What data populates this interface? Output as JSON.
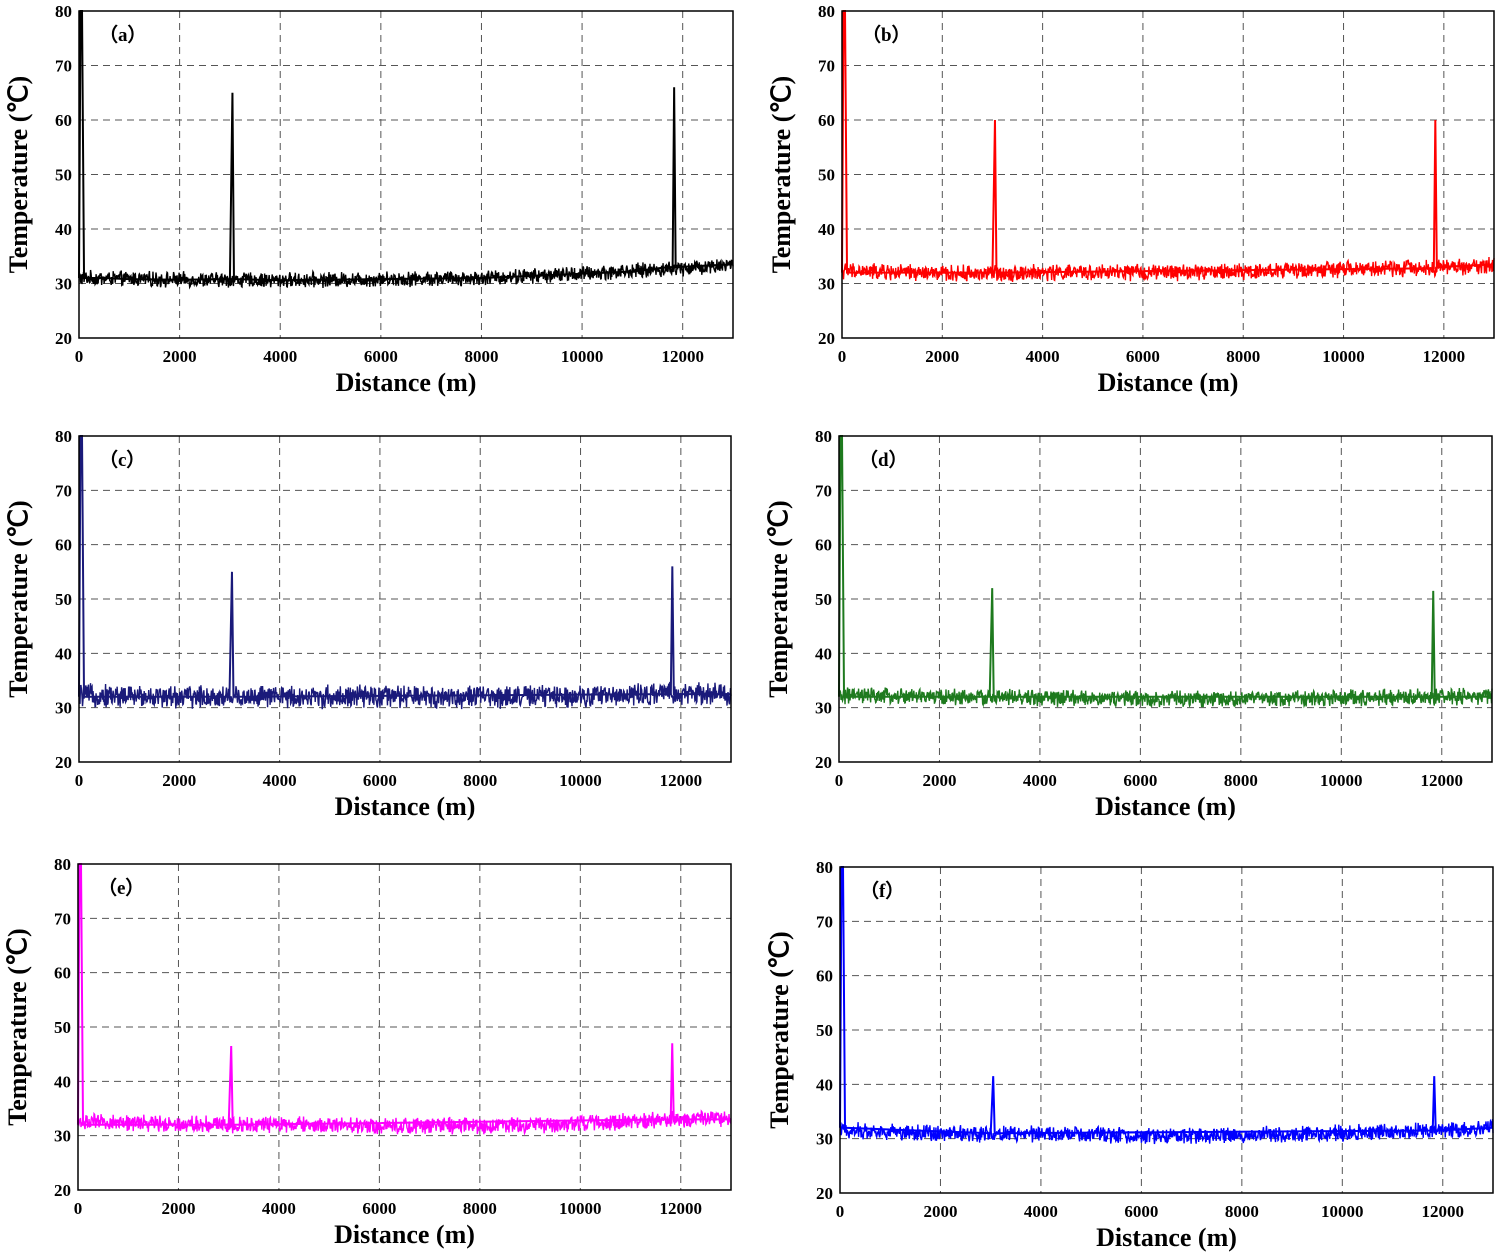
{
  "chart_data": [
    {
      "type": "line",
      "panel_label": "（a）",
      "xlabel": "Distance (m)",
      "ylabel": "Temperature (℃)",
      "xlim": [
        0,
        13000
      ],
      "ylim": [
        20,
        80
      ],
      "xticks": [
        0,
        2000,
        4000,
        6000,
        8000,
        10000,
        12000
      ],
      "yticks": [
        20,
        30,
        40,
        50,
        60,
        70,
        80
      ],
      "grid": true,
      "color": "#000000",
      "series": [
        {
          "x": [
            0,
            30,
            60,
            100,
            500,
            1000,
            2000,
            3000,
            3050,
            3080,
            3110,
            4000,
            6000,
            8000,
            10000,
            11000,
            11700,
            11800,
            11830,
            11860,
            12500,
            13000
          ],
          "y": [
            31,
            80,
            80,
            31,
            31,
            30.8,
            30.7,
            30.8,
            65,
            31,
            30.8,
            30.6,
            30.8,
            31,
            31.8,
            32.2,
            33,
            33,
            66,
            33,
            33.3,
            33.5
          ]
        }
      ],
      "baseline_band": {
        "x": [
          0,
          2000,
          4000,
          6000,
          8000,
          10000,
          12000,
          13000
        ],
        "mean": [
          31,
          30.7,
          30.6,
          30.8,
          31,
          31.8,
          32.8,
          33.5
        ],
        "noise": 1.2
      }
    },
    {
      "type": "line",
      "panel_label": "（b）",
      "xlabel": "Distance (m)",
      "ylabel": "Temperature (℃)",
      "xlim": [
        0,
        13000
      ],
      "ylim": [
        20,
        80
      ],
      "xticks": [
        0,
        2000,
        4000,
        6000,
        8000,
        10000,
        12000
      ],
      "yticks": [
        20,
        30,
        40,
        50,
        60,
        70,
        80
      ],
      "grid": true,
      "color": "#ff0000",
      "series": [
        {
          "x": [
            0,
            30,
            60,
            100,
            3000,
            3050,
            3080,
            3110,
            11800,
            11830,
            11860,
            13000
          ],
          "y": [
            32,
            80,
            80,
            32,
            32,
            60,
            32,
            32,
            32.8,
            60,
            33,
            33.5
          ]
        }
      ],
      "baseline_band": {
        "x": [
          0,
          2000,
          4000,
          6000,
          8000,
          10000,
          12000,
          13000
        ],
        "mean": [
          32.3,
          31.8,
          32,
          32,
          32.2,
          32.6,
          33,
          33.3
        ],
        "noise": 1.3
      }
    },
    {
      "type": "line",
      "panel_label": "（c）",
      "xlabel": "Distance (m)",
      "ylabel": "Temperature (℃)",
      "xlim": [
        0,
        13000
      ],
      "ylim": [
        20,
        80
      ],
      "xticks": [
        0,
        2000,
        4000,
        6000,
        8000,
        10000,
        12000
      ],
      "yticks": [
        20,
        30,
        40,
        50,
        60,
        70,
        80
      ],
      "grid": true,
      "color": "#1a1a7a",
      "series": [
        {
          "x": [
            0,
            30,
            60,
            100,
            3000,
            3050,
            3080,
            3110,
            11800,
            11830,
            11860,
            13000
          ],
          "y": [
            32,
            80,
            80,
            32,
            32,
            55,
            32,
            32,
            32.5,
            56,
            32.5,
            32.5
          ]
        }
      ],
      "baseline_band": {
        "x": [
          0,
          2000,
          4000,
          6000,
          8000,
          10000,
          12000,
          13000
        ],
        "mean": [
          32.3,
          32,
          32,
          32,
          32,
          32.2,
          32.5,
          32.5
        ],
        "noise": 1.8
      }
    },
    {
      "type": "line",
      "panel_label": "（d）",
      "xlabel": "Distance (m)",
      "ylabel": "Temperature (℃)",
      "xlim": [
        0,
        13000
      ],
      "ylim": [
        20,
        80
      ],
      "xticks": [
        0,
        2000,
        4000,
        6000,
        8000,
        10000,
        12000
      ],
      "yticks": [
        20,
        30,
        40,
        50,
        60,
        70,
        80
      ],
      "grid": true,
      "color": "#1e7a1e",
      "series": [
        {
          "x": [
            0,
            30,
            60,
            100,
            3000,
            3050,
            3080,
            3110,
            11800,
            11830,
            11860,
            13000
          ],
          "y": [
            32,
            80,
            80,
            32,
            32,
            52,
            32,
            32,
            32,
            51.5,
            32,
            32
          ]
        }
      ],
      "baseline_band": {
        "x": [
          0,
          2000,
          4000,
          6000,
          8000,
          10000,
          12000,
          13000
        ],
        "mean": [
          32.2,
          32,
          31.8,
          31.6,
          31.6,
          31.8,
          32,
          32
        ],
        "noise": 1.3
      }
    },
    {
      "type": "line",
      "panel_label": "（e）",
      "xlabel": "Distance (m)",
      "ylabel": "Temperature (℃)",
      "xlim": [
        0,
        13000
      ],
      "ylim": [
        20,
        80
      ],
      "xticks": [
        0,
        2000,
        4000,
        6000,
        8000,
        10000,
        12000
      ],
      "yticks": [
        20,
        30,
        40,
        50,
        60,
        70,
        80
      ],
      "grid": true,
      "color": "#ff00ff",
      "series": [
        {
          "x": [
            0,
            30,
            60,
            100,
            3000,
            3050,
            3080,
            3110,
            11800,
            11830,
            11860,
            13000
          ],
          "y": [
            32,
            80,
            80,
            32,
            32,
            46.5,
            32,
            32,
            33,
            47,
            33,
            33
          ]
        }
      ],
      "baseline_band": {
        "x": [
          0,
          2000,
          4000,
          6000,
          8000,
          10000,
          12000,
          13000
        ],
        "mean": [
          32.5,
          32.2,
          32,
          31.8,
          31.8,
          32.2,
          33,
          33
        ],
        "noise": 1.3
      }
    },
    {
      "type": "line",
      "panel_label": "（f）",
      "xlabel": "Distance (m)",
      "ylabel": "Temperature (℃)",
      "xlim": [
        0,
        13000
      ],
      "ylim": [
        20,
        80
      ],
      "xticks": [
        0,
        2000,
        4000,
        6000,
        8000,
        10000,
        12000
      ],
      "yticks": [
        20,
        30,
        40,
        50,
        60,
        70,
        80
      ],
      "grid": true,
      "color": "#0000ff",
      "series": [
        {
          "x": [
            0,
            30,
            60,
            100,
            3000,
            3050,
            3080,
            3110,
            11800,
            11830,
            11860,
            13000
          ],
          "y": [
            32,
            80,
            80,
            32,
            31,
            41.5,
            31,
            31,
            31.5,
            41.5,
            31.5,
            32
          ]
        }
      ],
      "baseline_band": {
        "x": [
          0,
          2000,
          4000,
          6000,
          8000,
          10000,
          12000,
          13000
        ],
        "mean": [
          31.5,
          31,
          30.8,
          30.5,
          30.6,
          31,
          31.5,
          32
        ],
        "noise": 1.3
      }
    }
  ]
}
